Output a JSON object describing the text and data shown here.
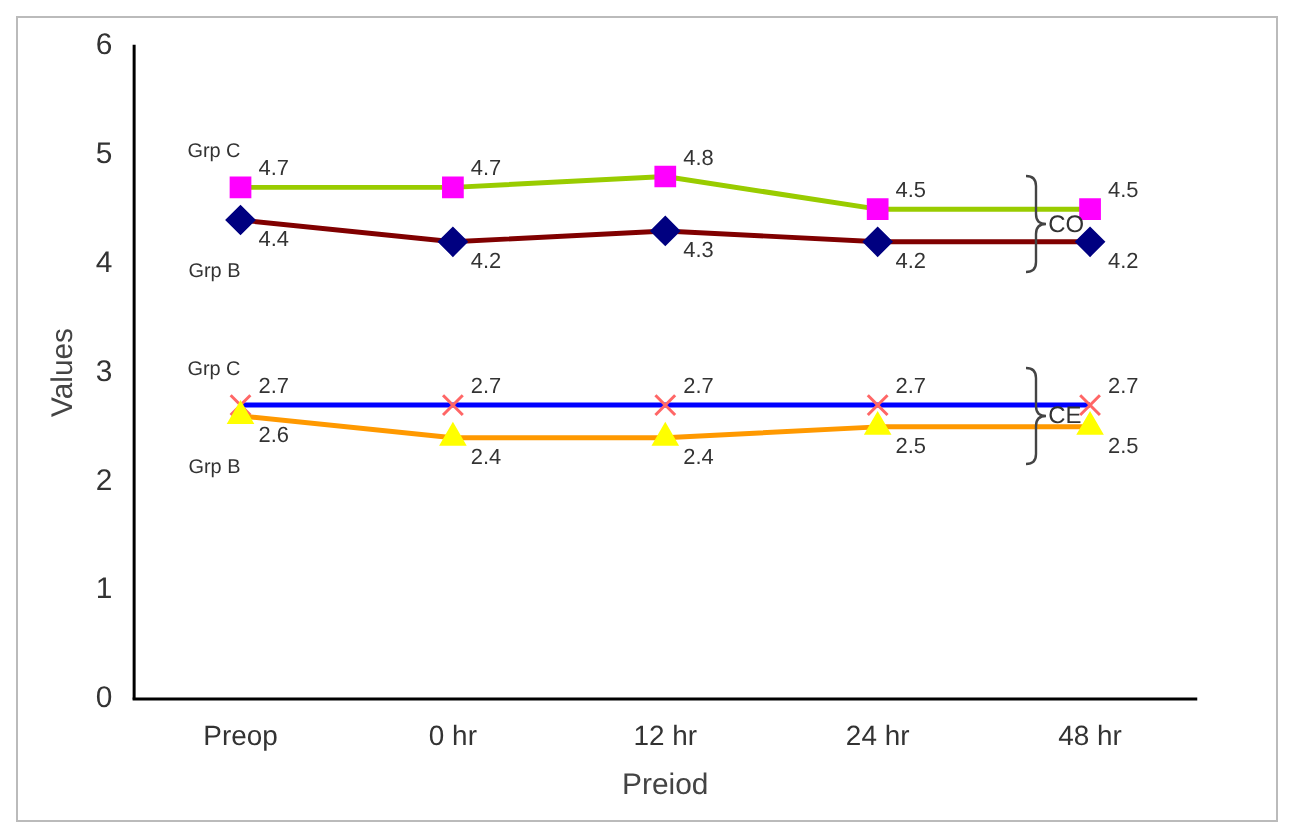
{
  "chart_data": {
    "type": "line",
    "xlabel": "Preiod",
    "ylabel": "Values",
    "categories": [
      "Preop",
      "0 hr",
      "12 hr",
      "24 hr",
      "48 hr"
    ],
    "ylim": [
      0,
      6
    ],
    "yticks": [
      0,
      1,
      2,
      3,
      4,
      5,
      6
    ],
    "grid": false,
    "legend": false,
    "data_labels": true,
    "line_style": "solid",
    "series": [
      {
        "name": "Grp C",
        "color": "#99cc00",
        "marker": "square",
        "colors": [
          "#ff00ff",
          "#ff00ff",
          "#ff00ff",
          "#ff00ff",
          "#ff00ff"
        ],
        "values": [
          4.7,
          4.7,
          4.8,
          4.5,
          4.5
        ]
      },
      {
        "name": "Grp B",
        "color": "#800000",
        "marker": "diamond",
        "colors": [
          "#000080",
          "#000080",
          "#000080",
          "#000080",
          "#000080"
        ],
        "values": [
          4.4,
          4.2,
          4.3,
          4.2,
          4.2
        ]
      },
      {
        "name": "Grp C",
        "color": "#0000ff",
        "marker": "cross",
        "colors": [
          "#ff6666",
          "#ff6666",
          "#ff6666",
          "#ff6666",
          "#ff6666"
        ],
        "values": [
          2.7,
          2.7,
          2.7,
          2.7,
          2.7
        ]
      },
      {
        "name": "Grp B",
        "color": "#ff9900",
        "marker": "triangle",
        "colors": [
          "#ffff00",
          "#ffff00",
          "#ffff00",
          "#ffff00",
          "#ffff00"
        ],
        "values": [
          2.6,
          2.4,
          2.4,
          2.5,
          2.5
        ]
      }
    ],
    "annotations": [
      {
        "text": "CO",
        "x": "48 hr",
        "y": 4.35
      },
      {
        "text": "CE",
        "x": "48 hr",
        "y": 2.6
      }
    ]
  }
}
